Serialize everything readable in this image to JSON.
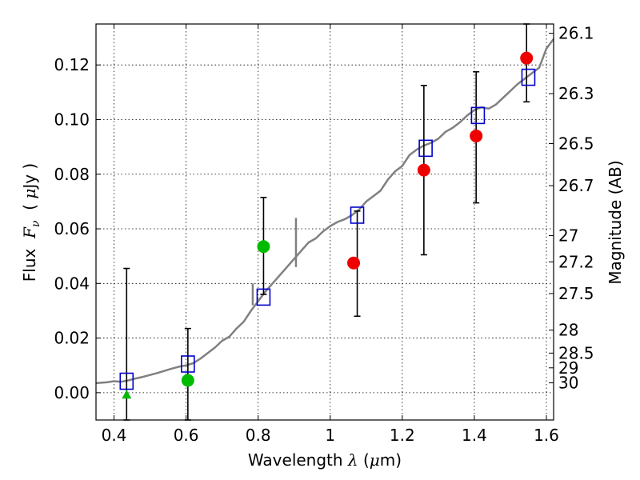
{
  "chart_data": {
    "type": "scatter",
    "xlabel_parts": [
      "Wavelength ",
      "λ",
      " (",
      "μ",
      "m)"
    ],
    "ylabel_parts": [
      "Flux  ",
      "F",
      "ν",
      "  ( ",
      "μ",
      "Jy )"
    ],
    "y2label": "Magnitude (AB)",
    "xlim": [
      0.35,
      1.62
    ],
    "ylim": [
      -0.01,
      0.135
    ],
    "x_ticks": [
      0.4,
      0.6,
      0.8,
      1.0,
      1.2,
      1.4,
      1.6
    ],
    "x_tick_labels": [
      "0.4",
      "0.6",
      "0.8",
      "1",
      "1.2",
      "1.4",
      "1.6"
    ],
    "y_ticks": [
      0.0,
      0.02,
      0.04,
      0.06,
      0.08,
      0.1,
      0.12
    ],
    "y_tick_labels": [
      "0.00",
      "0.02",
      "0.04",
      "0.06",
      "0.08",
      "0.10",
      "0.12"
    ],
    "grid": true,
    "right_axis_ticks": [
      {
        "label": "26.1",
        "flux": 0.1316
      },
      {
        "label": "26.3",
        "flux": 0.1095
      },
      {
        "label": "26.5",
        "flux": 0.0912
      },
      {
        "label": "26.7",
        "flux": 0.0758
      },
      {
        "label": "27",
        "flux": 0.0575
      },
      {
        "label": "27.2",
        "flux": 0.0479
      },
      {
        "label": "27.5",
        "flux": 0.0363
      },
      {
        "label": "28",
        "flux": 0.0229
      },
      {
        "label": "28.5",
        "flux": 0.0145
      },
      {
        "label": "29",
        "flux": 0.0091
      },
      {
        "label": "30",
        "flux": 0.0036
      }
    ],
    "model_spectrum": {
      "color": "#808080",
      "points": [
        [
          0.35,
          0.0035
        ],
        [
          0.38,
          0.0038
        ],
        [
          0.4,
          0.0042
        ],
        [
          0.42,
          0.004
        ],
        [
          0.44,
          0.0045
        ],
        [
          0.46,
          0.0052
        ],
        [
          0.48,
          0.0058
        ],
        [
          0.5,
          0.0065
        ],
        [
          0.52,
          0.0072
        ],
        [
          0.54,
          0.008
        ],
        [
          0.56,
          0.0088
        ],
        [
          0.58,
          0.0095
        ],
        [
          0.6,
          0.01
        ],
        [
          0.62,
          0.0108
        ],
        [
          0.64,
          0.0125
        ],
        [
          0.66,
          0.0145
        ],
        [
          0.68,
          0.0165
        ],
        [
          0.7,
          0.019
        ],
        [
          0.72,
          0.0205
        ],
        [
          0.74,
          0.0235
        ],
        [
          0.76,
          0.026
        ],
        [
          0.78,
          0.03
        ],
        [
          0.8,
          0.0335
        ],
        [
          0.82,
          0.037
        ],
        [
          0.84,
          0.04
        ],
        [
          0.86,
          0.043
        ],
        [
          0.88,
          0.046
        ],
        [
          0.9,
          0.049
        ],
        [
          0.92,
          0.052
        ],
        [
          0.94,
          0.055
        ],
        [
          0.96,
          0.0565
        ],
        [
          0.98,
          0.059
        ],
        [
          1.0,
          0.061
        ],
        [
          1.02,
          0.0625
        ],
        [
          1.04,
          0.0635
        ],
        [
          1.06,
          0.065
        ],
        [
          1.08,
          0.067
        ],
        [
          1.1,
          0.07
        ],
        [
          1.12,
          0.072
        ],
        [
          1.14,
          0.074
        ],
        [
          1.16,
          0.078
        ],
        [
          1.18,
          0.081
        ],
        [
          1.2,
          0.083
        ],
        [
          1.22,
          0.087
        ],
        [
          1.24,
          0.089
        ],
        [
          1.26,
          0.0905
        ],
        [
          1.28,
          0.0915
        ],
        [
          1.3,
          0.093
        ],
        [
          1.32,
          0.0955
        ],
        [
          1.34,
          0.097
        ],
        [
          1.36,
          0.099
        ],
        [
          1.38,
          0.1015
        ],
        [
          1.4,
          0.1035
        ],
        [
          1.42,
          0.1045
        ],
        [
          1.44,
          0.104
        ],
        [
          1.46,
          0.1055
        ],
        [
          1.48,
          0.108
        ],
        [
          1.5,
          0.1105
        ],
        [
          1.52,
          0.113
        ],
        [
          1.54,
          0.115
        ],
        [
          1.56,
          0.117
        ],
        [
          1.58,
          0.119
        ],
        [
          1.6,
          0.126
        ],
        [
          1.62,
          0.1295
        ]
      ]
    },
    "series": [
      {
        "name": "",
        "marker": "square-open",
        "color": "#0000cc",
        "points": [
          {
            "x": 0.435,
            "y": 0.0042
          },
          {
            "x": 0.605,
            "y": 0.0105
          },
          {
            "x": 0.815,
            "y": 0.035
          },
          {
            "x": 1.075,
            "y": 0.065
          },
          {
            "x": 1.265,
            "y": 0.0895
          },
          {
            "x": 1.41,
            "y": 0.1015
          },
          {
            "x": 1.55,
            "y": 0.1155
          }
        ]
      },
      {
        "name": "",
        "marker": "circle",
        "color": "#00bb00",
        "points": [
          {
            "x": 0.605,
            "y": 0.0045
          },
          {
            "x": 0.815,
            "y": 0.0535
          }
        ]
      },
      {
        "name": "",
        "marker": "triangle",
        "color": "#00bb00",
        "points": [
          {
            "x": 0.435,
            "y": -0.001
          }
        ]
      },
      {
        "name": "",
        "marker": "circle",
        "color": "#ee0000",
        "points": [
          {
            "x": 1.065,
            "y": 0.0475
          },
          {
            "x": 1.26,
            "y": 0.0815
          },
          {
            "x": 1.405,
            "y": 0.094
          },
          {
            "x": 1.545,
            "y": 0.1225
          }
        ]
      }
    ],
    "error_bars": [
      {
        "x": 0.435,
        "lo": -0.01,
        "hi": 0.0455
      },
      {
        "x": 0.605,
        "lo": -0.01,
        "hi": 0.0235
      },
      {
        "x": 0.815,
        "lo": 0.036,
        "hi": 0.0715
      },
      {
        "x": 1.075,
        "lo": 0.028,
        "hi": 0.0665
      },
      {
        "x": 1.26,
        "lo": 0.0505,
        "hi": 0.1125
      },
      {
        "x": 1.405,
        "lo": 0.0695,
        "hi": 0.1175
      },
      {
        "x": 1.545,
        "lo": 0.1065,
        "hi": 0.135
      }
    ]
  }
}
